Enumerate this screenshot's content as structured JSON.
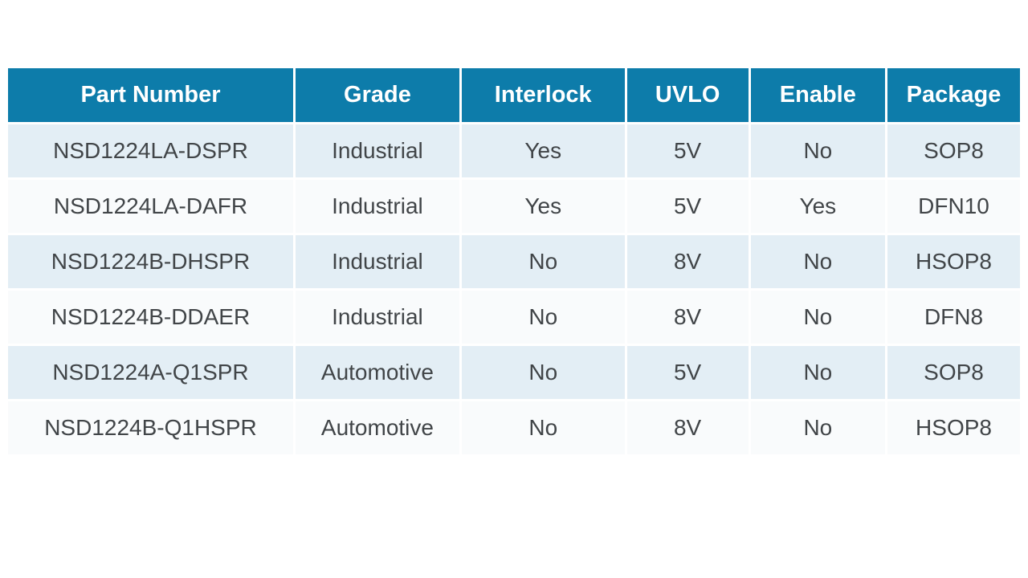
{
  "colors": {
    "header_bg": "#0d7caa",
    "header_text": "#ffffff",
    "row_odd_bg": "#e3eef5",
    "row_even_bg": "#f9fbfc",
    "body_text": "#414548",
    "separator": "#ffffff",
    "page_bg": "#ffffff"
  },
  "table": {
    "columns": [
      {
        "key": "part-number",
        "label": "Part Number",
        "width": "28.2%"
      },
      {
        "key": "grade",
        "label": "Grade",
        "width": "16.2%"
      },
      {
        "key": "interlock",
        "label": "Interlock",
        "width": "16.1%"
      },
      {
        "key": "uvlo",
        "label": "UVLO",
        "width": "12.0%"
      },
      {
        "key": "enable",
        "label": "Enable",
        "width": "13.3%"
      },
      {
        "key": "package",
        "label": "Package",
        "width": "13.1%"
      }
    ],
    "rows": [
      [
        "NSD1224LA-DSPR",
        "Industrial",
        "Yes",
        "5V",
        "No",
        "SOP8"
      ],
      [
        "NSD1224LA-DAFR",
        "Industrial",
        "Yes",
        "5V",
        "Yes",
        "DFN10"
      ],
      [
        "NSD1224B-DHSPR",
        "Industrial",
        "No",
        "8V",
        "No",
        "HSOP8"
      ],
      [
        "NSD1224B-DDAER",
        "Industrial",
        "No",
        "8V",
        "No",
        "DFN8"
      ],
      [
        "NSD1224A-Q1SPR",
        "Automotive",
        "No",
        "5V",
        "No",
        "SOP8"
      ],
      [
        "NSD1224B-Q1HSPR",
        "Automotive",
        "No",
        "8V",
        "No",
        "HSOP8"
      ]
    ]
  },
  "chart_data": {
    "type": "table",
    "title": "",
    "columns": [
      "Part Number",
      "Grade",
      "Interlock",
      "UVLO",
      "Enable",
      "Package"
    ],
    "rows": [
      [
        "NSD1224LA-DSPR",
        "Industrial",
        "Yes",
        "5V",
        "No",
        "SOP8"
      ],
      [
        "NSD1224LA-DAFR",
        "Industrial",
        "Yes",
        "5V",
        "Yes",
        "DFN10"
      ],
      [
        "NSD1224B-DHSPR",
        "Industrial",
        "No",
        "8V",
        "No",
        "HSOP8"
      ],
      [
        "NSD1224B-DDAER",
        "Industrial",
        "No",
        "8V",
        "No",
        "DFN8"
      ],
      [
        "NSD1224A-Q1SPR",
        "Automotive",
        "No",
        "5V",
        "No",
        "SOP8"
      ],
      [
        "NSD1224B-Q1HSPR",
        "Automotive",
        "No",
        "8V",
        "No",
        "HSOP8"
      ]
    ]
  }
}
